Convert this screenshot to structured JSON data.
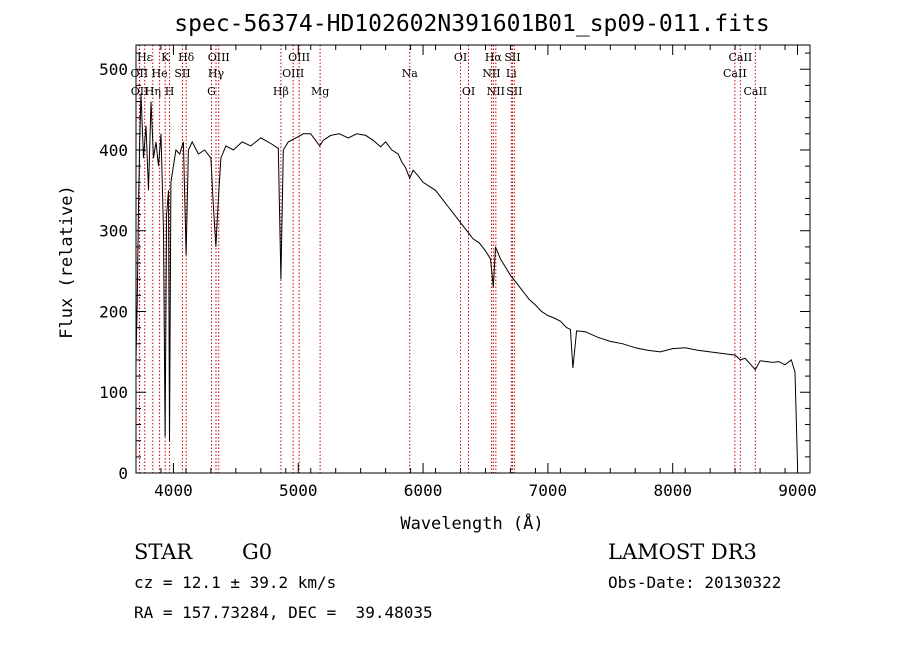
{
  "chart_data": {
    "type": "line",
    "title": "spec-56374-HD102602N391601B01_sp09-011.fits",
    "xlabel": "Wavelength (Å)",
    "ylabel": "Flux (relative)",
    "xlim": [
      3700,
      9100
    ],
    "ylim": [
      0,
      530
    ],
    "xticks": [
      4000,
      5000,
      6000,
      7000,
      8000,
      9000
    ],
    "xtick_labels": [
      "4000",
      "5000",
      "6000",
      "7000",
      "8000",
      "9000"
    ],
    "yticks": [
      0,
      100,
      200,
      300,
      400,
      500
    ],
    "ytick_labels": [
      "0",
      "100",
      "200",
      "300",
      "400",
      "500"
    ],
    "series": [
      {
        "name": "flux",
        "x": [
          3700,
          3710,
          3720,
          3730,
          3740,
          3760,
          3780,
          3800,
          3820,
          3840,
          3860,
          3880,
          3900,
          3920,
          3933,
          3945,
          3960,
          3968,
          3980,
          4000,
          4020,
          4050,
          4080,
          4101,
          4120,
          4150,
          4200,
          4250,
          4300,
          4320,
          4340,
          4360,
          4380,
          4420,
          4480,
          4550,
          4620,
          4700,
          4780,
          4840,
          4861,
          4880,
          4920,
          4980,
          5040,
          5100,
          5172,
          5200,
          5260,
          5330,
          5400,
          5470,
          5540,
          5600,
          5660,
          5700,
          5750,
          5800,
          5830,
          5860,
          5893,
          5920,
          5960,
          6000,
          6050,
          6100,
          6150,
          6200,
          6250,
          6300,
          6350,
          6400,
          6450,
          6500,
          6540,
          6563,
          6580,
          6620,
          6660,
          6700,
          6750,
          6800,
          6850,
          6900,
          6950,
          7000,
          7050,
          7100,
          7150,
          7180,
          7200,
          7230,
          7300,
          7400,
          7500,
          7600,
          7700,
          7800,
          7900,
          8000,
          8100,
          8200,
          8300,
          8400,
          8500,
          8542,
          8580,
          8662,
          8700,
          8800,
          8850,
          8900,
          8950,
          8980,
          9000
        ],
        "y": [
          140,
          210,
          330,
          410,
          470,
          390,
          430,
          350,
          460,
          390,
          410,
          380,
          420,
          300,
          45,
          320,
          350,
          40,
          360,
          380,
          400,
          395,
          410,
          270,
          400,
          410,
          395,
          400,
          390,
          330,
          280,
          340,
          390,
          405,
          400,
          410,
          405,
          415,
          408,
          402,
          240,
          400,
          410,
          415,
          420,
          420,
          405,
          412,
          418,
          420,
          415,
          420,
          418,
          412,
          404,
          410,
          400,
          395,
          385,
          378,
          365,
          375,
          368,
          360,
          355,
          350,
          340,
          330,
          320,
          310,
          300,
          290,
          285,
          275,
          265,
          230,
          280,
          265,
          255,
          245,
          235,
          225,
          215,
          208,
          200,
          195,
          192,
          188,
          180,
          178,
          130,
          176,
          175,
          168,
          163,
          160,
          155,
          152,
          150,
          154,
          155,
          152,
          150,
          148,
          146,
          140,
          142,
          128,
          139,
          137,
          138,
          134,
          140,
          125,
          10
        ]
      }
    ],
    "line_markers": [
      {
        "label": "Hε",
        "wavelength": 3770,
        "row": 0
      },
      {
        "label": "OII",
        "wavelength": 3727,
        "row": 1
      },
      {
        "label": "OII",
        "wavelength": 3729,
        "row": 2
      },
      {
        "label": "Hη",
        "wavelength": 3835,
        "row": 2
      },
      {
        "label": "K",
        "wavelength": 3934,
        "row": 0
      },
      {
        "label": "He",
        "wavelength": 3889,
        "row": 1
      },
      {
        "label": "SII",
        "wavelength": 4072,
        "row": 1
      },
      {
        "label": "H",
        "wavelength": 3969,
        "row": 2
      },
      {
        "label": "Hδ",
        "wavelength": 4102,
        "row": 0
      },
      {
        "label": "OIII",
        "wavelength": 4363,
        "row": 0
      },
      {
        "label": "Hγ",
        "wavelength": 4341,
        "row": 1
      },
      {
        "label": "G",
        "wavelength": 4305,
        "row": 2
      },
      {
        "label": "OIII",
        "wavelength": 5007,
        "row": 0
      },
      {
        "label": "OIII",
        "wavelength": 4959,
        "row": 1
      },
      {
        "label": "Hβ",
        "wavelength": 4861,
        "row": 2
      },
      {
        "label": "Mg",
        "wavelength": 5175,
        "row": 2
      },
      {
        "label": "Na",
        "wavelength": 5893,
        "row": 1
      },
      {
        "label": "OI",
        "wavelength": 6300,
        "row": 0
      },
      {
        "label": "OI",
        "wavelength": 6364,
        "row": 2
      },
      {
        "label": "Hα",
        "wavelength": 6563,
        "row": 0
      },
      {
        "label": "SII",
        "wavelength": 6716,
        "row": 0
      },
      {
        "label": "NII",
        "wavelength": 6548,
        "row": 1
      },
      {
        "label": "Li",
        "wavelength": 6707,
        "row": 1
      },
      {
        "label": "NII",
        "wavelength": 6583,
        "row": 2
      },
      {
        "label": "SII",
        "wavelength": 6731,
        "row": 2
      },
      {
        "label": "CaII",
        "wavelength": 8542,
        "row": 0
      },
      {
        "label": "CaII",
        "wavelength": 8498,
        "row": 1
      },
      {
        "label": "CaII",
        "wavelength": 8662,
        "row": 2
      }
    ],
    "marker_color": "#cc0000",
    "line_color": "#000000"
  },
  "info": {
    "class": "STAR",
    "subclass": "G0",
    "survey": "LAMOST DR3",
    "redshift": "cz = 12.1 ± 39.2 km/s",
    "obs_date": "Obs-Date: 20130322",
    "coords": "RA = 157.73284, DEC =  39.48035"
  }
}
